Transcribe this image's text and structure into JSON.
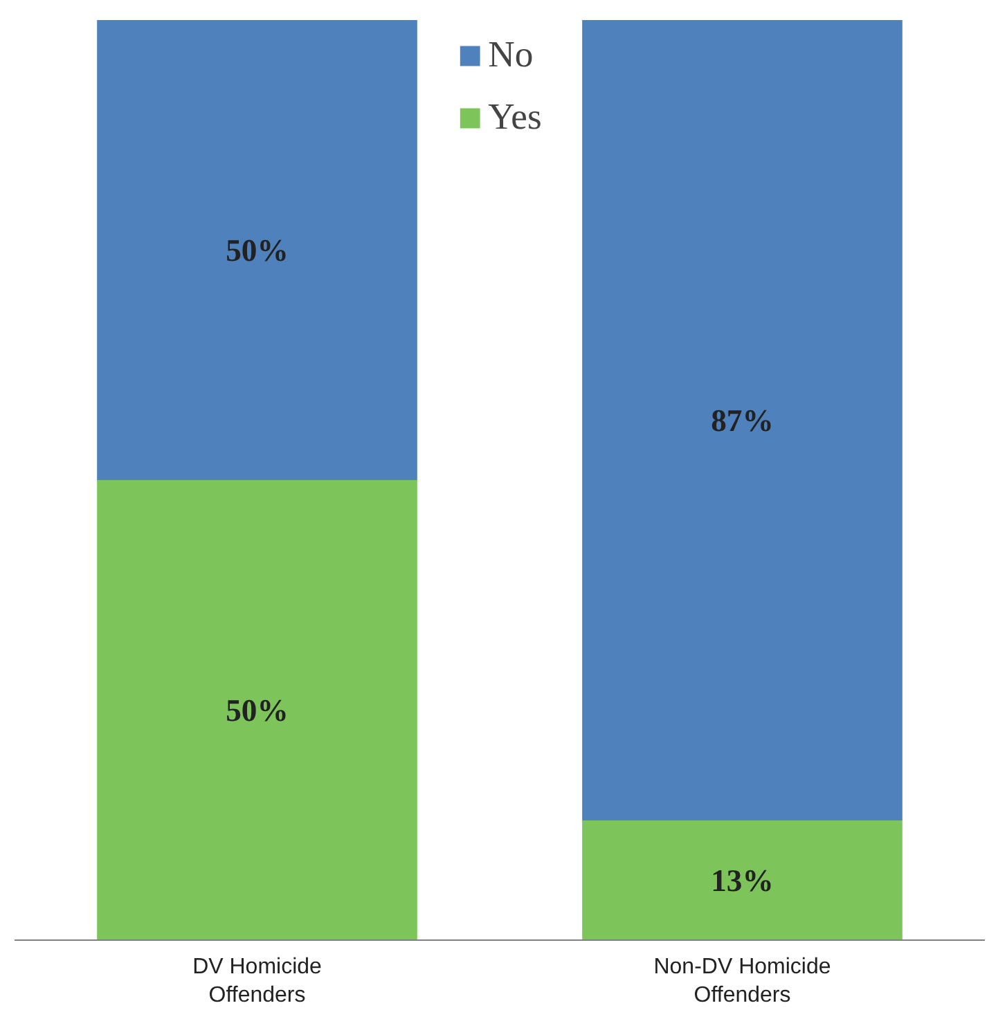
{
  "chart_data": {
    "type": "bar",
    "stacked": true,
    "categories": [
      "DV Homicide Offenders",
      "Non-DV Homicide Offenders"
    ],
    "series": [
      {
        "name": "Yes",
        "color": "#7dc55a",
        "values": [
          50,
          13
        ],
        "value_labels": [
          "50%",
          "13%"
        ]
      },
      {
        "name": "No",
        "color": "#4f81bd",
        "values": [
          50,
          87
        ],
        "value_labels": [
          "50%",
          "87%"
        ]
      }
    ],
    "tick_labels": "x",
    "grid": false,
    "legend": "top"
  }
}
